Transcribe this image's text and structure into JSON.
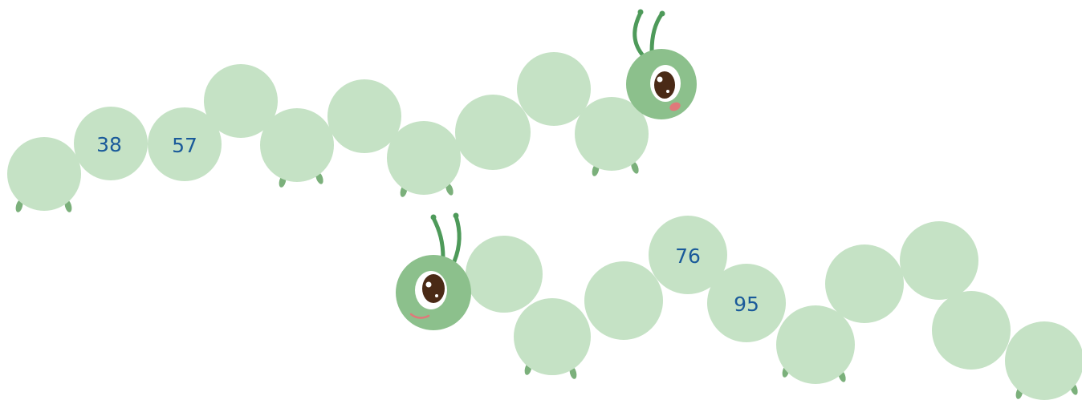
{
  "caterpillar_top": {
    "segments": [
      {
        "label": ""
      },
      {
        "label": "38"
      },
      {
        "label": "57"
      },
      {
        "label": ""
      },
      {
        "label": ""
      },
      {
        "label": ""
      },
      {
        "label": ""
      },
      {
        "label": ""
      },
      {
        "label": ""
      },
      {
        "label": ""
      }
    ]
  },
  "caterpillar_bottom": {
    "segments": [
      {
        "label": ""
      },
      {
        "label": ""
      },
      {
        "label": ""
      },
      {
        "label": "76"
      },
      {
        "label": "95"
      },
      {
        "label": ""
      },
      {
        "label": ""
      },
      {
        "label": ""
      },
      {
        "label": ""
      },
      {
        "label": ""
      }
    ]
  },
  "colors": {
    "body": "#c5e2c5",
    "head": "#8cc08c",
    "antenna": "#4e9a5a",
    "foot": "#7bb07b",
    "number": "#1a5a9a",
    "eye": "#4a2a16",
    "tongue": "#e0787a"
  }
}
